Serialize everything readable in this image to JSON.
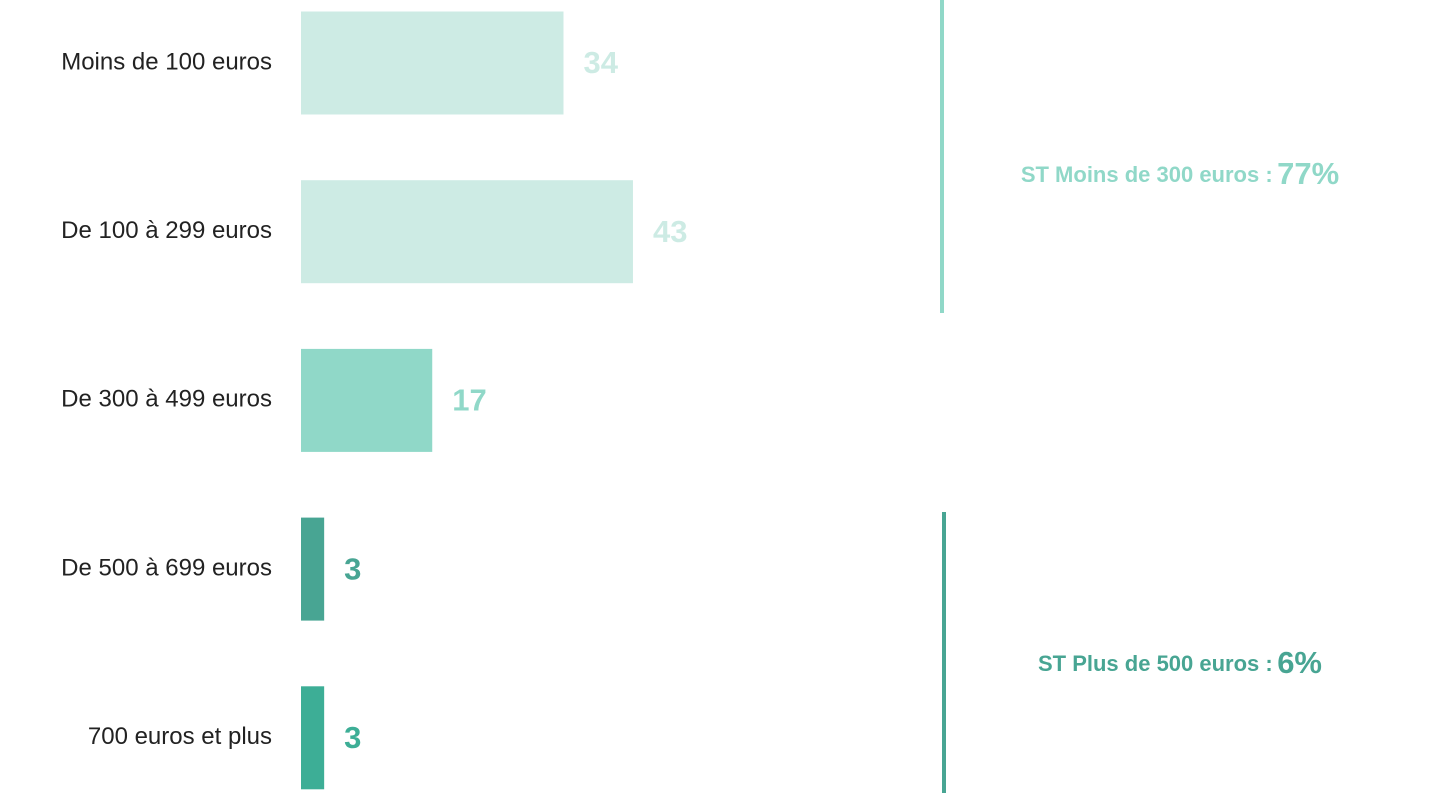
{
  "chart_data": {
    "type": "bar",
    "orientation": "horizontal",
    "categories": [
      "Moins de 100 euros",
      "De 100 à 299 euros",
      "De 300 à 499 euros",
      "De 500 à 699 euros",
      "700 euros et plus"
    ],
    "values": [
      34,
      43,
      17,
      3,
      3
    ],
    "colors": [
      "#cdebe4",
      "#cdebe4",
      "#90d8c8",
      "#48a593",
      "#3dae96"
    ],
    "annotations": [
      {
        "text": "ST Moins de 300 euros :",
        "value": 77,
        "value_label": "77%",
        "color": "#90d8c8"
      },
      {
        "text": "ST Plus de 500 euros :",
        "value": 6,
        "value_label": "6%",
        "color": "#48a593"
      }
    ]
  }
}
